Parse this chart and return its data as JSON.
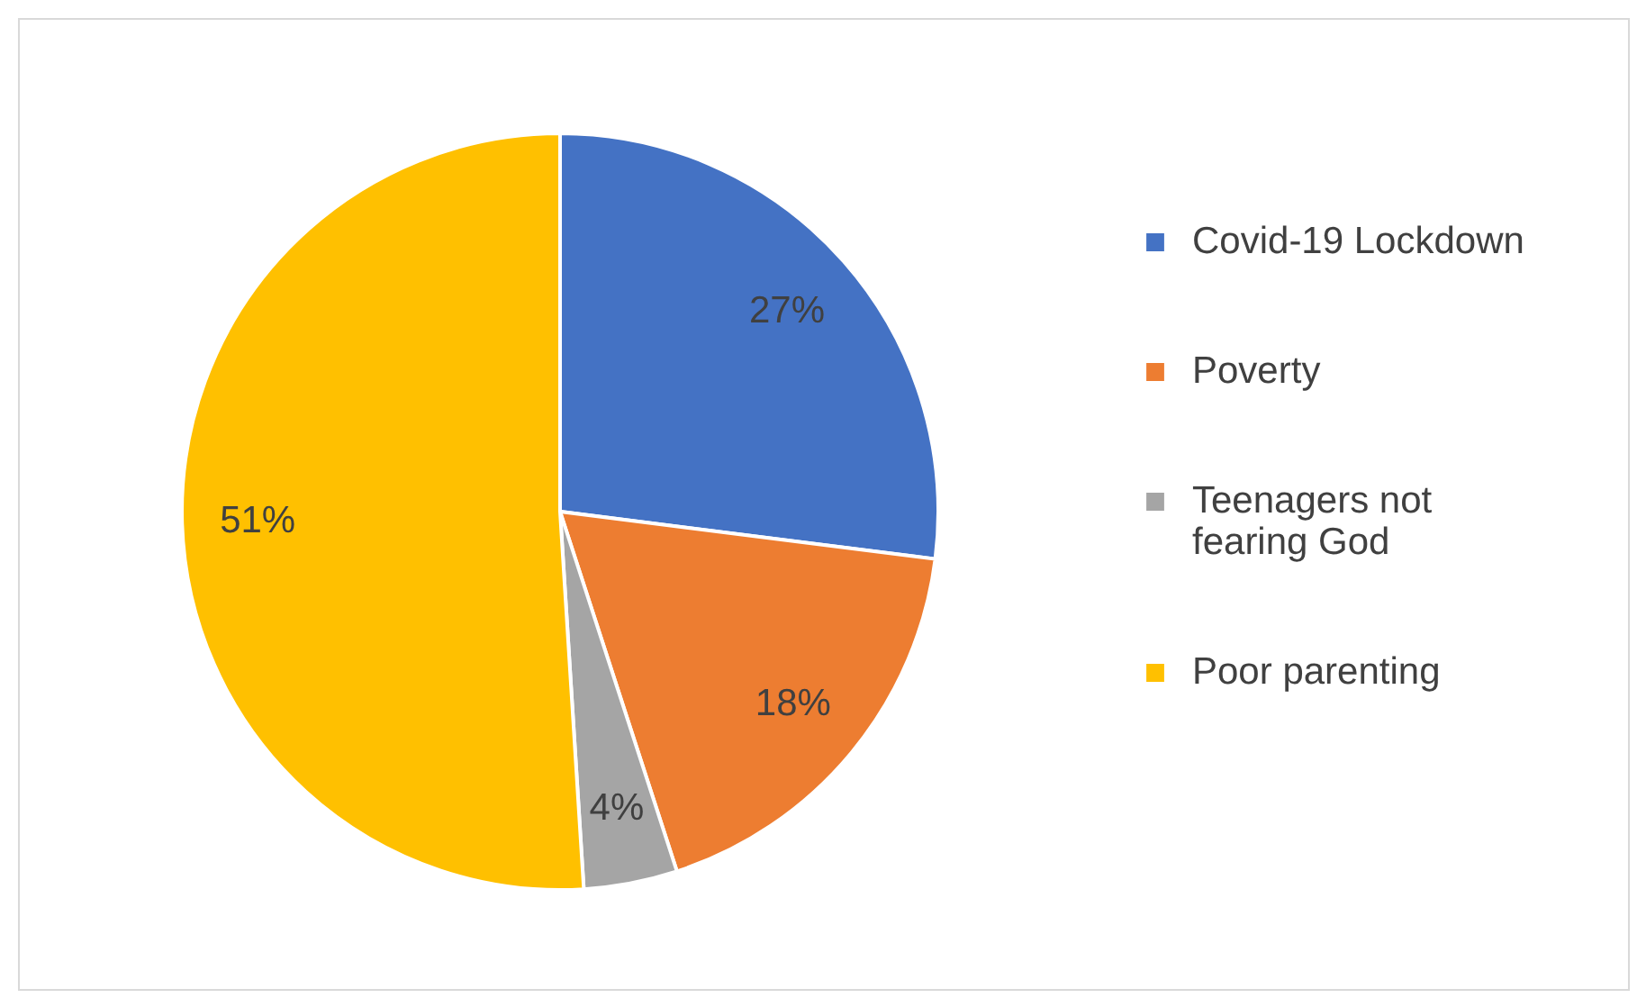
{
  "chart_data": {
    "type": "pie",
    "categories": [
      "Covid-19 Lockdown",
      "Poverty",
      "Teenagers not fearing God",
      "Poor parenting"
    ],
    "values": [
      27,
      18,
      4,
      51
    ],
    "colors": [
      "#4472c4",
      "#ed7d31",
      "#a5a5a5",
      "#ffc000"
    ],
    "value_labels": [
      "27%",
      "18%",
      "4%",
      "51%"
    ],
    "legend": "right"
  }
}
